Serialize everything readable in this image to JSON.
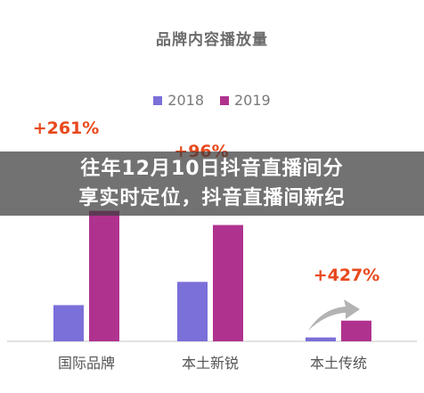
{
  "chart_data": {
    "type": "bar",
    "title": "品牌内容播放量",
    "categories": [
      "国际品牌",
      "本土新锐",
      "本土传统"
    ],
    "series": [
      {
        "name": "2018",
        "color": "#7b6fd9",
        "values": [
          2.8,
          4.6,
          0.3
        ]
      },
      {
        "name": "2019",
        "color": "#b0328f",
        "values": [
          10.1,
          9.0,
          1.6
        ]
      }
    ],
    "annotations": [
      "+261%",
      "+96%",
      "+427%"
    ],
    "annotation_color": "#e8491d",
    "legend_position": "top-center",
    "grid": false
  },
  "overlay": {
    "line1": "往年12月10日抖音直播间分",
    "line2": "享实时定位，抖音直播间新纪"
  }
}
